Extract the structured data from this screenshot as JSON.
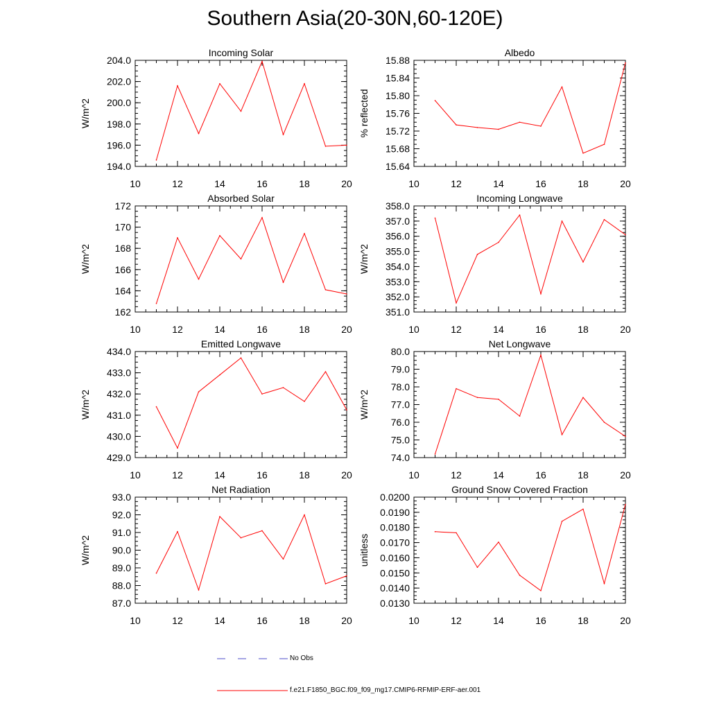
{
  "figure": {
    "title": "Southern Asia(20-30N,60-120E)",
    "line_color": "#ff0000",
    "obs_color": "#4b4bc8",
    "legend": {
      "obs_label": "No Obs",
      "model_label": "f.e21.F1850_BGC.f09_f09_mg17.CMIP6-RFMIP-ERF-aer.001"
    }
  },
  "chart_data": [
    {
      "type": "line",
      "title": "Incoming Solar",
      "ylabel": "W/m^2",
      "xlim": [
        10,
        20
      ],
      "ylim": [
        194,
        204
      ],
      "xticks": [
        10,
        12,
        14,
        16,
        18,
        20
      ],
      "yticks": [
        "194.0",
        "196.0",
        "198.0",
        "200.0",
        "202.0",
        "204.0"
      ],
      "yminor": 0.5,
      "x": [
        11,
        12,
        13,
        14,
        15,
        16,
        17,
        18,
        19,
        20
      ],
      "values": [
        194.6,
        201.6,
        197.1,
        201.8,
        199.2,
        203.9,
        197.0,
        201.8,
        195.9,
        196.0
      ]
    },
    {
      "type": "line",
      "title": "Albedo",
      "ylabel": "% reflected",
      "xlim": [
        10,
        20
      ],
      "ylim": [
        15.64,
        15.88
      ],
      "xticks": [
        10,
        12,
        14,
        16,
        18,
        20
      ],
      "yticks": [
        "15.64",
        "15.68",
        "15.72",
        "15.76",
        "15.80",
        "15.84",
        "15.88"
      ],
      "yminor": 0.01,
      "x": [
        11,
        12,
        13,
        14,
        15,
        16,
        17,
        18,
        19,
        20
      ],
      "values": [
        15.789,
        15.734,
        15.728,
        15.724,
        15.74,
        15.731,
        15.82,
        15.67,
        15.69,
        15.874
      ]
    },
    {
      "type": "line",
      "title": "Absorbed Solar",
      "ylabel": "W/m^2",
      "xlim": [
        10,
        20
      ],
      "ylim": [
        162,
        172
      ],
      "xticks": [
        10,
        12,
        14,
        16,
        18,
        20
      ],
      "yticks": [
        "162",
        "164",
        "166",
        "168",
        "170",
        "172"
      ],
      "yminor": 0.5,
      "x": [
        11,
        12,
        13,
        14,
        15,
        16,
        17,
        18,
        19,
        20
      ],
      "values": [
        162.8,
        169.0,
        165.1,
        169.2,
        167.0,
        170.9,
        164.8,
        169.4,
        164.1,
        163.7
      ]
    },
    {
      "type": "line",
      "title": "Incoming Longwave",
      "ylabel": "W/m^2",
      "xlim": [
        10,
        20
      ],
      "ylim": [
        351,
        358
      ],
      "xticks": [
        10,
        12,
        14,
        16,
        18,
        20
      ],
      "yticks": [
        "351.0",
        "352.0",
        "353.0",
        "354.0",
        "355.0",
        "356.0",
        "357.0",
        "358.0"
      ],
      "yminor": 0.25,
      "x": [
        11,
        12,
        13,
        14,
        15,
        16,
        17,
        18,
        19,
        20
      ],
      "values": [
        357.2,
        351.6,
        354.8,
        355.6,
        357.4,
        352.2,
        357.0,
        354.3,
        357.1,
        356.1
      ]
    },
    {
      "type": "line",
      "title": "Emitted Longwave",
      "ylabel": "W/m^2",
      "xlim": [
        10,
        20
      ],
      "ylim": [
        429,
        434
      ],
      "xticks": [
        10,
        12,
        14,
        16,
        18,
        20
      ],
      "yticks": [
        "429.0",
        "430.0",
        "431.0",
        "432.0",
        "433.0",
        "434.0"
      ],
      "yminor": 0.25,
      "x": [
        11,
        12,
        13,
        14,
        15,
        16,
        17,
        18,
        19,
        20
      ],
      "values": [
        431.4,
        429.45,
        432.1,
        432.9,
        433.7,
        432.0,
        432.3,
        431.65,
        433.05,
        431.25
      ]
    },
    {
      "type": "line",
      "title": "Net Longwave",
      "ylabel": "W/m^2",
      "xlim": [
        10,
        20
      ],
      "ylim": [
        74,
        80
      ],
      "xticks": [
        10,
        12,
        14,
        16,
        18,
        20
      ],
      "yticks": [
        "74.0",
        "75.0",
        "76.0",
        "77.0",
        "78.0",
        "79.0",
        "80.0"
      ],
      "yminor": 0.25,
      "x": [
        11,
        12,
        13,
        14,
        15,
        16,
        17,
        18,
        19,
        20
      ],
      "values": [
        74.2,
        77.9,
        77.4,
        77.3,
        76.35,
        79.8,
        75.3,
        77.4,
        76.0,
        75.2
      ]
    },
    {
      "type": "line",
      "title": "Net Radiation",
      "ylabel": "W/m^2",
      "xlim": [
        10,
        20
      ],
      "ylim": [
        87,
        93
      ],
      "xticks": [
        10,
        12,
        14,
        16,
        18,
        20
      ],
      "yticks": [
        "87.0",
        "88.0",
        "89.0",
        "90.0",
        "91.0",
        "92.0",
        "93.0"
      ],
      "yminor": 0.25,
      "x": [
        11,
        12,
        13,
        14,
        15,
        16,
        17,
        18,
        19,
        20
      ],
      "values": [
        88.7,
        91.05,
        87.75,
        91.9,
        90.7,
        91.1,
        89.5,
        92.0,
        88.1,
        88.55
      ]
    },
    {
      "type": "line",
      "title": "Ground Snow Covered Fraction",
      "ylabel": "unitless",
      "xlim": [
        10,
        20
      ],
      "ylim": [
        0.013,
        0.02
      ],
      "xticks": [
        10,
        12,
        14,
        16,
        18,
        20
      ],
      "yticks": [
        "0.0130",
        "0.0140",
        "0.0150",
        "0.0160",
        "0.0170",
        "0.0180",
        "0.0190",
        "0.0200"
      ],
      "yminor": 0.00025,
      "x": [
        11,
        12,
        13,
        14,
        15,
        16,
        17,
        18,
        19,
        20
      ],
      "values": [
        0.01772,
        0.01765,
        0.01537,
        0.01703,
        0.01485,
        0.01383,
        0.01841,
        0.01921,
        0.0143,
        0.01952
      ]
    }
  ]
}
